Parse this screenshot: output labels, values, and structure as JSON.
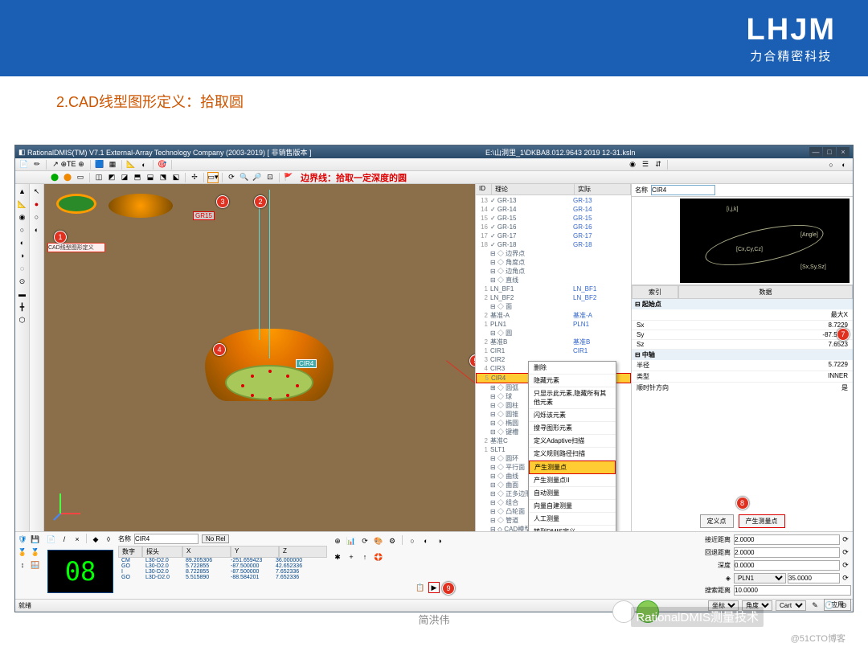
{
  "header": {
    "logo": "LHJM",
    "logo_sub": "力合精密科技"
  },
  "slide_title": "2.CAD线型图形定义：拾取圆",
  "titlebar": {
    "app": "RationalDMIS(TM) V7.1   External-Array Technology Company (2003-2019) [ 非销售版本 ]",
    "path": "E:\\山洞里_1\\DKBA8.012.9643   2019 12-31.ksln"
  },
  "banner": "边界线：拾取一定深度的圆",
  "callout_label": "CAD线型图形定义",
  "viewport": {
    "cir_label": "CIR4",
    "gr_label": "GR15"
  },
  "tree": {
    "cols": [
      "ID",
      "理论",
      "实际"
    ],
    "top_rows": [
      {
        "id": "13",
        "l": "GR-13",
        "a": "GR-13"
      },
      {
        "id": "14",
        "l": "GR-14",
        "a": "GR-14"
      },
      {
        "id": "15",
        "l": "GR-15",
        "a": "GR-15"
      },
      {
        "id": "16",
        "l": "GR-16",
        "a": "GR-16"
      },
      {
        "id": "17",
        "l": "GR-17",
        "a": "GR-17"
      },
      {
        "id": "18",
        "l": "GR-18",
        "a": "GR-18"
      }
    ],
    "groups": [
      {
        "id": "",
        "l": "⊟ ◇ 边界点",
        "a": ""
      },
      {
        "id": "",
        "l": "⊟ ◇ 角度点",
        "a": ""
      },
      {
        "id": "",
        "l": "⊟ ◇ 边角点",
        "a": ""
      },
      {
        "id": "",
        "l": "⊟ ◇ 直线",
        "a": ""
      },
      {
        "id": "1",
        "l": "   LN_BF1",
        "a": "LN_BF1"
      },
      {
        "id": "2",
        "l": "   LN_BF2",
        "a": "LN_BF2"
      },
      {
        "id": "",
        "l": "⊟ ◇ 面",
        "a": ""
      },
      {
        "id": "2",
        "l": "   基准-A",
        "a": "基准-A"
      },
      {
        "id": "1",
        "l": "   PLN1",
        "a": "PLN1"
      },
      {
        "id": "",
        "l": "⊟ ◇ 圆",
        "a": ""
      },
      {
        "id": "2",
        "l": "   基准B",
        "a": "基准B"
      },
      {
        "id": "1",
        "l": "   CIR1",
        "a": "CIR1"
      },
      {
        "id": "3",
        "l": "   CIR2",
        "a": ""
      },
      {
        "id": "4",
        "l": "   CIR3",
        "a": ""
      },
      {
        "id": "5",
        "l": "   CIR4",
        "a": "",
        "sel": true
      },
      {
        "id": "",
        "l": "⊞ ◇ 圆弧",
        "a": ""
      },
      {
        "id": "",
        "l": "⊟ ◇ 球",
        "a": ""
      },
      {
        "id": "",
        "l": "⊟ ◇ 圆柱",
        "a": ""
      },
      {
        "id": "",
        "l": "⊟ ◇ 圆锥",
        "a": ""
      },
      {
        "id": "",
        "l": "⊟ ◇ 椭圆",
        "a": ""
      },
      {
        "id": "",
        "l": "⊟ ◇ 键槽",
        "a": ""
      },
      {
        "id": "2",
        "l": "   基准C",
        "a": "基准C"
      },
      {
        "id": "1",
        "l": "   SLT1",
        "a": ""
      },
      {
        "id": "",
        "l": "⊟ ◇ 圆环",
        "a": ""
      },
      {
        "id": "",
        "l": "⊟ ◇ 平行面",
        "a": ""
      },
      {
        "id": "",
        "l": "⊟ ◇ 曲线",
        "a": ""
      },
      {
        "id": "",
        "l": "⊟ ◇ 曲面",
        "a": ""
      },
      {
        "id": "",
        "l": "⊟ ◇ 正多边形",
        "a": ""
      },
      {
        "id": "",
        "l": "⊟ ◇ 组合",
        "a": ""
      },
      {
        "id": "",
        "l": "⊟ ◇ 凸轮面",
        "a": ""
      },
      {
        "id": "",
        "l": "⊟ ◇ 管道",
        "a": ""
      },
      {
        "id": "",
        "l": "⊟ ◇ CAD模型",
        "a": ""
      },
      {
        "id": "",
        "l": "   CADM_1",
        "a": "DKBA8.012.9643.stp"
      },
      {
        "id": "",
        "l": "⊟ ◇ 白云",
        "a": ""
      }
    ]
  },
  "ctx": [
    "删除",
    "隐藏元素",
    "只显示此元素,隐藏所有其他元素",
    "闪烁该元素",
    "搜寻图形元素",
    "定义Adaptive扫描",
    "定义规则路径扫描",
    "产生测量点",
    "产生测量点II",
    "自动测量",
    "向量自建测量",
    "人工测量",
    "转到DMIS定义",
    "转到DMIS测量",
    "发送到点云"
  ],
  "ctx_sel": "产生测量点",
  "prop": {
    "name_lbl": "名称",
    "name_val": "CIR4",
    "tabs": [
      "索引",
      "数据"
    ],
    "groups": [
      {
        "g": "起始点",
        "rows": [
          [
            "",
            "最大X"
          ],
          [
            "Sx",
            "8.7229"
          ],
          [
            "Sy",
            "-87.5000"
          ],
          [
            "Sz",
            "7.6523"
          ]
        ]
      },
      {
        "g": "中轴",
        "rows": [
          [
            "半径",
            "5.7229"
          ],
          [
            "类型",
            "INNER"
          ],
          [
            "顺时针方向",
            "是"
          ]
        ]
      },
      {
        "g": "",
        "rows": [
          [
            "定角度",
            "360.0000",
            "hl"
          ],
          [
            "点数目",
            "8",
            "hl"
          ],
          [
            "导程",
            "0.0000"
          ]
        ]
      }
    ],
    "btn_define": "定义点",
    "btn_generate": "产生测量点"
  },
  "coord": {
    "name_lbl": "名称",
    "name_val": "CIR4",
    "norel": "No Rel",
    "cols": [
      "数字",
      "探头",
      "X",
      "Y",
      "Z"
    ],
    "rows": [
      [
        "CM",
        "L30-D2.0",
        "89.205306",
        "-251.659423",
        "36.000000"
      ],
      [
        "GO",
        "L30-D2.0",
        "5.722855",
        "-87.500000",
        "42.652336"
      ],
      [
        "I",
        "L30-D2.0",
        "8.722855",
        "-87.500000",
        "7.652336"
      ],
      [
        "GO",
        "L3D-D2.0",
        "5.515890",
        "-88.584201",
        "7.652336"
      ]
    ],
    "digital": "08"
  },
  "params": {
    "rows": [
      [
        "接近距离",
        "2.0000"
      ],
      [
        "回退距离",
        "2.0000"
      ],
      [
        "深度",
        "0.0000"
      ]
    ],
    "sel_label": "",
    "sel_val": "PLN1",
    "sel_num": "35.0000",
    "search_lbl": "搜索距离",
    "search_val": "10.0000",
    "apply": "应用"
  },
  "status": {
    "left": "就绪",
    "sel1": "坐标",
    "sel2": "角度",
    "sel3": "Cart"
  },
  "footer": "简洪伟",
  "watermark1": "RationalDMIS测量技术",
  "watermark2": "@51CTO博客"
}
